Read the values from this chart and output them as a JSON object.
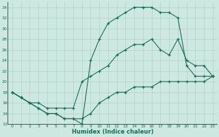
{
  "xlabel": "Humidex (Indice chaleur)",
  "ylabel": "",
  "bg_color": "#cce8e0",
  "line_color": "#1a6b5a",
  "grid_color": "#b0d0c8",
  "xlim": [
    -0.5,
    23.5
  ],
  "ylim": [
    12,
    35
  ],
  "xticks": [
    0,
    1,
    2,
    3,
    4,
    5,
    6,
    7,
    8,
    9,
    10,
    11,
    12,
    13,
    14,
    15,
    16,
    17,
    18,
    19,
    20,
    21,
    22,
    23
  ],
  "yticks": [
    12,
    14,
    16,
    18,
    20,
    22,
    24,
    26,
    28,
    30,
    32,
    34
  ],
  "line1_x": [
    0,
    1,
    2,
    3,
    4,
    5,
    6,
    7,
    8,
    9,
    10,
    11,
    12,
    13,
    14,
    15,
    16,
    17,
    18,
    19,
    20,
    21,
    22,
    23
  ],
  "line1_y": [
    18,
    17,
    16,
    15,
    14,
    14,
    13,
    13,
    12,
    24,
    28,
    31,
    32,
    33,
    34,
    34,
    34,
    33,
    33,
    32,
    23,
    21,
    21,
    21
  ],
  "line2_x": [
    0,
    1,
    2,
    3,
    4,
    5,
    6,
    7,
    8,
    9,
    10,
    11,
    12,
    13,
    14,
    15,
    16,
    17,
    18,
    19,
    20,
    21,
    22,
    23
  ],
  "line2_y": [
    18,
    17,
    16,
    16,
    15,
    15,
    15,
    15,
    20,
    21,
    22,
    23,
    25,
    26,
    27,
    27,
    28,
    26,
    25,
    28,
    24,
    23,
    23,
    21
  ],
  "line3_x": [
    0,
    1,
    2,
    3,
    4,
    5,
    6,
    7,
    8,
    9,
    10,
    11,
    12,
    13,
    14,
    15,
    16,
    17,
    18,
    19,
    20,
    21,
    22,
    23
  ],
  "line3_y": [
    18,
    17,
    16,
    15,
    14,
    14,
    13,
    13,
    13,
    14,
    16,
    17,
    18,
    18,
    19,
    19,
    19,
    20,
    20,
    20,
    20,
    20,
    20,
    21
  ]
}
